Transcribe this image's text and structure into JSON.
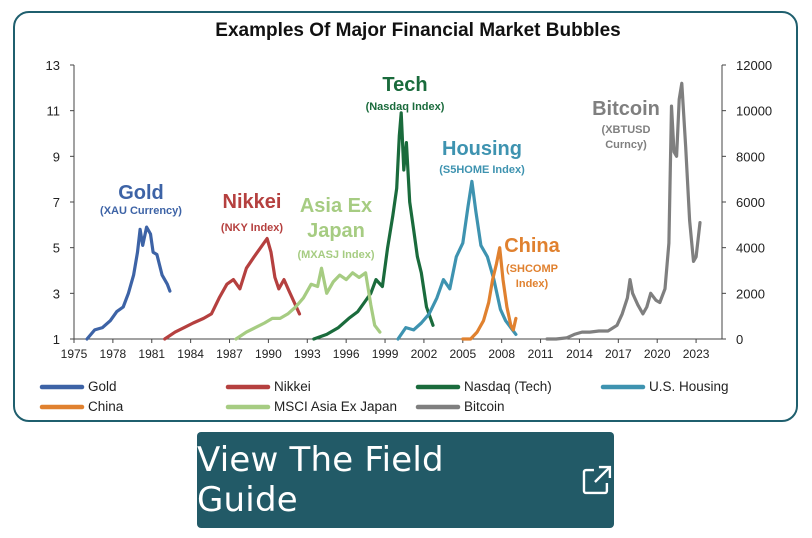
{
  "chart_data": {
    "type": "line",
    "title": "Examples Of Major Financial Market Bubbles",
    "x_ticks": [
      "1975",
      "1978",
      "1981",
      "1984",
      "1987",
      "1990",
      "1993",
      "1996",
      "1999",
      "2002",
      "2005",
      "2008",
      "2011",
      "2014",
      "2017",
      "2020",
      "2023"
    ],
    "y_left_ticks": [
      "1",
      "3",
      "5",
      "7",
      "9",
      "11",
      "13"
    ],
    "y_right_ticks": [
      "0",
      "2000",
      "4000",
      "6000",
      "8000",
      "10000",
      "12000"
    ],
    "xlim": [
      1975,
      2025
    ],
    "ylim_left": [
      1,
      13
    ],
    "ylim_right": [
      0,
      12000
    ],
    "legend_position": "bottom",
    "series": [
      {
        "name": "Gold",
        "color": "#3d63a6",
        "axis": "left",
        "label": "Gold",
        "sublabel": "(XAU Currency)",
        "x": [
          1976.0,
          1976.6,
          1977.2,
          1977.8,
          1978.3,
          1978.8,
          1979.2,
          1979.6,
          1979.9,
          1980.1,
          1980.3,
          1980.6,
          1980.9,
          1981.1,
          1981.4,
          1981.8,
          1982.2,
          1982.4
        ],
        "y": [
          1.0,
          1.4,
          1.5,
          1.8,
          2.2,
          2.4,
          3.0,
          3.8,
          4.8,
          5.8,
          5.1,
          5.9,
          5.6,
          4.8,
          4.7,
          3.8,
          3.4,
          3.1
        ]
      },
      {
        "name": "Nikkei",
        "color": "#b5403f",
        "axis": "left",
        "label": "Nikkei",
        "sublabel": "(NKY Index)",
        "x": [
          1982.0,
          1982.8,
          1983.5,
          1984.2,
          1985.0,
          1985.6,
          1986.2,
          1986.8,
          1987.3,
          1987.8,
          1988.3,
          1988.9,
          1989.4,
          1989.9,
          1990.2,
          1990.5,
          1990.8,
          1991.2,
          1991.6,
          1992.0,
          1992.4
        ],
        "y": [
          1.0,
          1.3,
          1.5,
          1.7,
          1.9,
          2.1,
          2.8,
          3.4,
          3.6,
          3.2,
          4.1,
          4.6,
          5.0,
          5.4,
          4.8,
          3.7,
          3.2,
          3.6,
          3.1,
          2.6,
          2.1
        ]
      },
      {
        "name": "Nasdaq (Tech)",
        "color": "#1a6b3c",
        "axis": "left",
        "label": "Tech",
        "sublabel": "(Nasdaq  Index)",
        "x": [
          1993.5,
          1994.5,
          1995.4,
          1996.2,
          1996.9,
          1997.4,
          1997.9,
          1998.3,
          1998.8,
          1999.2,
          1999.6,
          1999.9,
          2000.1,
          2000.25,
          2000.45,
          2000.65,
          2000.9,
          2001.2,
          2001.5,
          2001.8,
          2002.2,
          2002.7
        ],
        "y": [
          1.0,
          1.2,
          1.5,
          1.9,
          2.2,
          2.6,
          3.0,
          3.6,
          3.3,
          5.0,
          6.4,
          7.6,
          9.9,
          10.9,
          8.4,
          9.6,
          7.0,
          5.8,
          4.6,
          3.9,
          2.4,
          1.6
        ]
      },
      {
        "name": "U.S. Housing",
        "color": "#3e93b0",
        "axis": "left",
        "label": "Housing",
        "sublabel": "(S5HOME Index)",
        "x": [
          2000.0,
          2000.6,
          2001.2,
          2001.8,
          2002.4,
          2003.0,
          2003.5,
          2004.0,
          2004.5,
          2005.0,
          2005.4,
          2005.7,
          2006.0,
          2006.4,
          2006.9,
          2007.4,
          2007.9,
          2008.3,
          2008.7,
          2009.1
        ],
        "y": [
          1.0,
          1.5,
          1.4,
          1.7,
          2.1,
          2.8,
          3.6,
          3.2,
          4.6,
          5.2,
          6.8,
          7.9,
          6.6,
          5.1,
          4.6,
          3.6,
          2.3,
          1.8,
          1.5,
          1.2
        ]
      },
      {
        "name": "China",
        "color": "#e0812f",
        "axis": "left",
        "label": "China",
        "sublabel": "(SHCOMP\nIndex)",
        "x": [
          2005.0,
          2005.6,
          2006.1,
          2006.6,
          2007.0,
          2007.3,
          2007.6,
          2007.85,
          2008.1,
          2008.4,
          2008.7,
          2008.9,
          2009.1
        ],
        "y": [
          1.0,
          1.0,
          1.3,
          1.8,
          2.6,
          3.6,
          4.3,
          5.0,
          3.6,
          2.4,
          1.6,
          1.4,
          1.9
        ]
      },
      {
        "name": "MSCI Asia Ex Japan",
        "color": "#a6cc82",
        "axis": "left",
        "label": "Asia Ex\nJapan",
        "sublabel": "(MXASJ Index)",
        "x": [
          1987.5,
          1988.3,
          1989.0,
          1989.7,
          1990.3,
          1990.9,
          1991.5,
          1992.1,
          1992.7,
          1993.3,
          1993.8,
          1994.1,
          1994.5,
          1995.0,
          1995.5,
          1996.0,
          1996.5,
          1997.0,
          1997.5,
          1997.9,
          1998.2,
          1998.6
        ],
        "y": [
          1.0,
          1.3,
          1.5,
          1.7,
          1.9,
          1.9,
          2.1,
          2.4,
          2.8,
          3.4,
          3.3,
          4.1,
          3.0,
          3.5,
          3.8,
          3.6,
          3.9,
          3.7,
          3.9,
          2.5,
          1.6,
          1.3
        ]
      },
      {
        "name": "Bitcoin",
        "color": "#7f7f7f",
        "axis": "right",
        "label": "Bitcoin",
        "sublabel": "(XBTUSD\nCurncy)",
        "x": [
          2011.5,
          2012.2,
          2013.0,
          2013.6,
          2014.2,
          2014.8,
          2015.5,
          2016.2,
          2016.9,
          2017.3,
          2017.7,
          2017.9,
          2018.1,
          2018.5,
          2018.9,
          2019.2,
          2019.5,
          2019.9,
          2020.2,
          2020.6,
          2020.9,
          2021.1,
          2021.3,
          2021.5,
          2021.7,
          2021.9,
          2022.2,
          2022.5,
          2022.8,
          2023.0,
          2023.3
        ],
        "y": [
          0,
          0,
          50,
          200,
          300,
          300,
          350,
          350,
          600,
          1100,
          1800,
          2600,
          2000,
          1500,
          1100,
          1400,
          2000,
          1700,
          1600,
          2200,
          4200,
          10200,
          8200,
          8000,
          10500,
          11200,
          8400,
          5200,
          3400,
          3600,
          5100
        ]
      }
    ]
  },
  "cta": {
    "label": "View The Field Guide",
    "icon": "external-link-icon"
  }
}
